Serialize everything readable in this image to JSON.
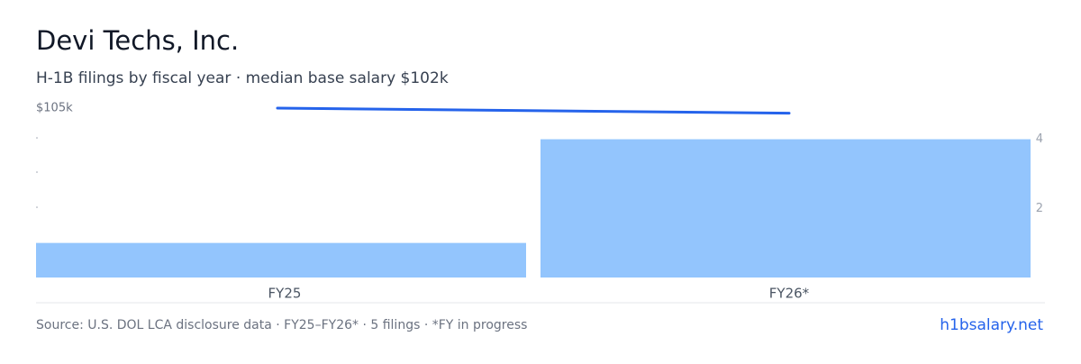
{
  "chart_data": {
    "type": "bar",
    "title": "Devi Techs, Inc.",
    "subtitle": "H-1B filings by fiscal year · median base salary $102k",
    "categories": [
      "FY25",
      "FY26*"
    ],
    "series": [
      {
        "type": "bar",
        "color": "#93c5fd",
        "values": [
          1,
          4
        ],
        "axis": "y2"
      },
      {
        "type": "line",
        "color": "#2563eb",
        "values": [
          105,
          104.7
        ]
      }
    ],
    "ylim": [
      95,
      105
    ],
    "yticks": [
      {
        "value": 105,
        "label": "$105k"
      }
    ],
    "y2lim": [
      0,
      4.9
    ],
    "y2ticks": [
      2,
      4
    ],
    "source": "Source: U.S. DOL LCA disclosure data · FY25–FY26* · 5 filings · *FY in progress",
    "link": "h1bsalary.net"
  }
}
